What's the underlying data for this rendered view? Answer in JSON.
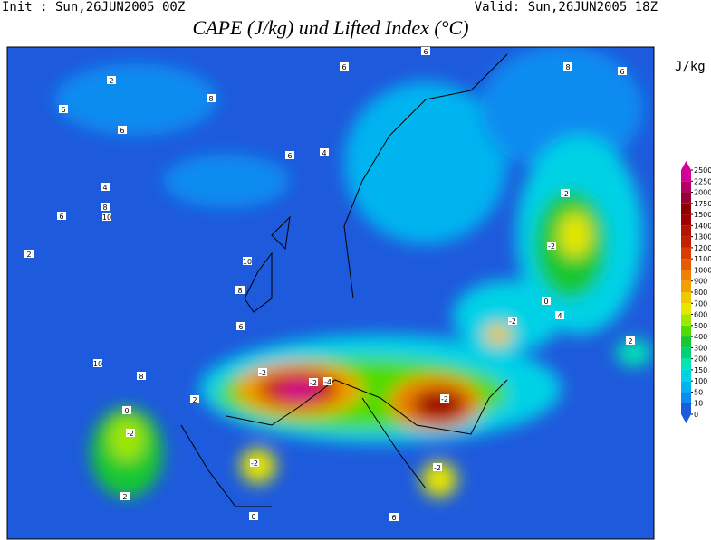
{
  "header": {
    "init": "Init : Sun,26JUN2005 00Z",
    "valid": "Valid: Sun,26JUN2005 18Z",
    "title": "CAPE (J/kg) und Lifted Index (°C)"
  },
  "colorbar": {
    "unit": "J/kg",
    "levels": [
      0,
      10,
      50,
      100,
      150,
      200,
      300,
      400,
      500,
      600,
      700,
      800,
      900,
      1000,
      1100,
      1200,
      1300,
      1400,
      1500,
      1750,
      2000,
      2250,
      2500
    ],
    "colors": [
      "#1e5adc",
      "#0a8cf0",
      "#00b4f0",
      "#00d2e6",
      "#00e6b4",
      "#00d278",
      "#14c832",
      "#50dc00",
      "#a0e600",
      "#e6e600",
      "#f0c800",
      "#f0a000",
      "#f08200",
      "#e65a00",
      "#dc3c00",
      "#c81e00",
      "#b41400",
      "#a00000",
      "#8c0000",
      "#960032",
      "#b40064",
      "#d20096"
    ]
  },
  "map": {
    "contour_labels": [
      "6",
      "6",
      "8",
      "2",
      "6",
      "4",
      "6",
      "6",
      "8",
      "6",
      "8",
      "10",
      "4",
      "6",
      "2",
      "10",
      "8",
      "6",
      "10",
      "8",
      "2",
      "-2",
      "0",
      "-2",
      "-2",
      "-4",
      "-2",
      "-2",
      "-2",
      "-2",
      "0",
      "2",
      "2",
      "0",
      "-2",
      "-2",
      "6",
      "4"
    ]
  }
}
